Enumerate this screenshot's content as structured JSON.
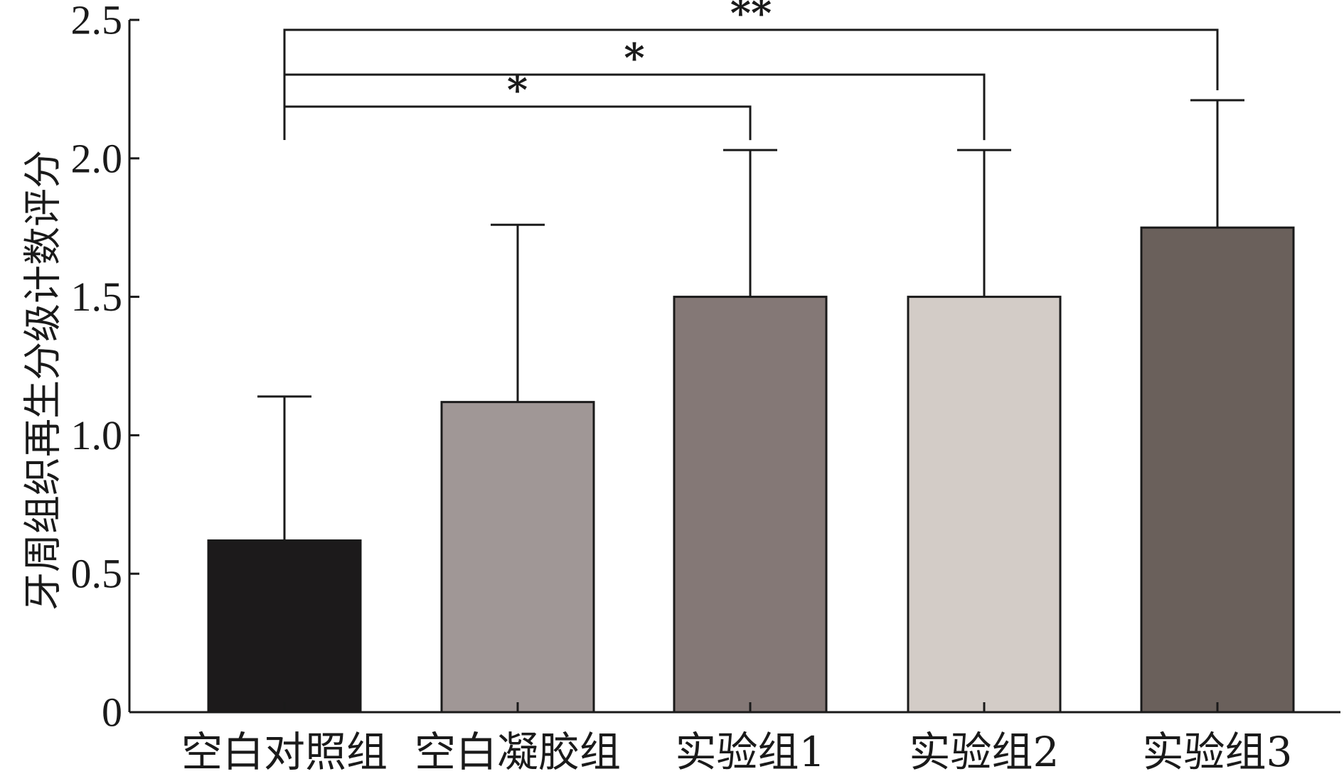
{
  "chart_data": {
    "type": "bar",
    "title": "",
    "xlabel": "",
    "ylabel": "牙周组织再生分级计数评分",
    "categories": [
      "空白对照组",
      "空白凝胶组",
      "实验组1",
      "实验组2",
      "实验组3"
    ],
    "values": [
      0.62,
      1.12,
      1.5,
      1.5,
      1.75
    ],
    "error_upper": [
      1.14,
      1.76,
      2.03,
      2.03,
      2.21
    ],
    "colors": [
      "#1c1a1b",
      "#a09796",
      "#847876",
      "#d3ccc7",
      "#6a605b"
    ],
    "ylim": [
      0,
      2.5
    ],
    "yticks": [
      0,
      0.5,
      1.0,
      1.5,
      2.0,
      2.5
    ],
    "ytick_labels": [
      "0",
      "0.5",
      "1.0",
      "1.5",
      "2.0",
      "2.5"
    ],
    "significance": [
      {
        "from": "空白对照组",
        "to": "实验组1",
        "label": "*"
      },
      {
        "from": "空白对照组",
        "to": "实验组2",
        "label": "*"
      },
      {
        "from": "空白对照组",
        "to": "实验组3",
        "label": "**"
      }
    ]
  }
}
